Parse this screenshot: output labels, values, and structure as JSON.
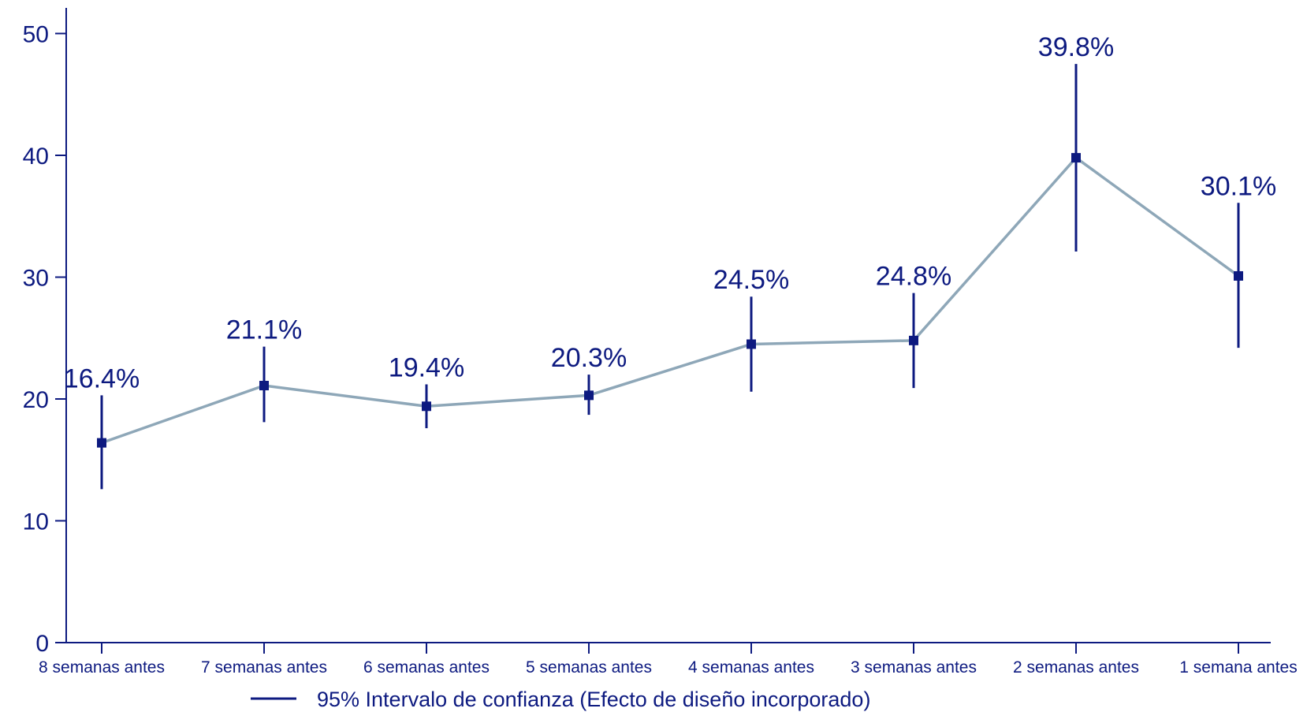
{
  "colors": {
    "primary": "#0d1a80",
    "line": "#8ea7b8",
    "background": "#ffffff"
  },
  "legend": {
    "label": "95% Intervalo de confianza (Efecto de diseño incorporado)",
    "placement": "bottom-center"
  },
  "chart_data": {
    "type": "line",
    "title": "",
    "xlabel": "",
    "ylabel": "",
    "ylim": [
      0,
      50
    ],
    "yticks": [
      0,
      10,
      20,
      30,
      40,
      50
    ],
    "grid": false,
    "categories": [
      "8 semanas antes",
      "7 semanas antes",
      "6 semanas antes",
      "5 semanas antes",
      "4 semanas antes",
      "3 semanas antes",
      "2 semanas antes",
      "1 semana antes"
    ],
    "series": [
      {
        "values": [
          16.4,
          21.1,
          19.4,
          20.3,
          24.5,
          24.8,
          39.8,
          30.1
        ],
        "ci_low": [
          12.6,
          18.1,
          17.6,
          18.7,
          20.6,
          20.9,
          32.1,
          24.2
        ],
        "ci_high": [
          20.3,
          24.3,
          21.2,
          22.0,
          28.4,
          28.7,
          47.5,
          36.1
        ],
        "data_labels": [
          "16.4%",
          "21.1%",
          "19.4%",
          "20.3%",
          "24.5%",
          "24.8%",
          "39.8%",
          "30.1%"
        ]
      }
    ]
  }
}
